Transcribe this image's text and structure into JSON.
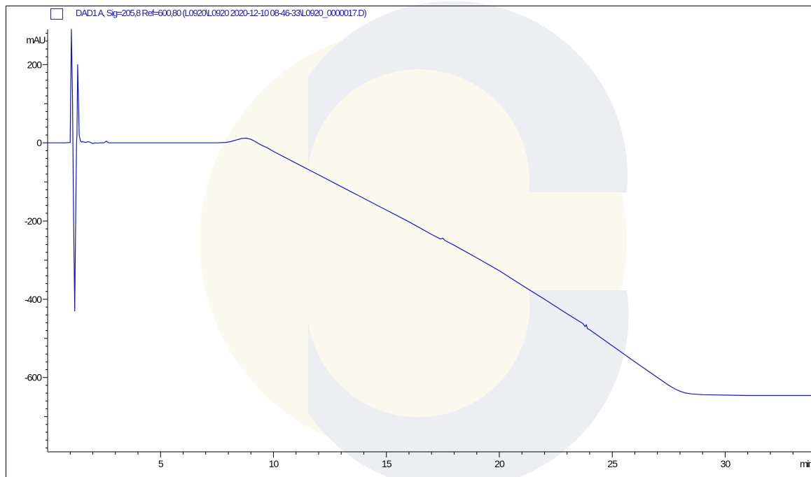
{
  "chart_data": {
    "type": "line",
    "title": "",
    "legend": "DAD1 A, Sig=205,8 Ref=600,80 (L0920\\L0920 2020-12-10 08-46-33\\L0920_0000017.D)",
    "xlabel": "min",
    "ylabel": "mAU",
    "xlim": [
      0,
      33.8
    ],
    "ylim": [
      -790,
      290
    ],
    "x_ticks": [
      5,
      10,
      15,
      20,
      25,
      30
    ],
    "x_tick_labels": [
      "5",
      "10",
      "15",
      "20",
      "25",
      "30"
    ],
    "y_ticks": [
      200,
      0,
      -200,
      -400,
      -600
    ],
    "y_tick_labels": [
      "200",
      "0",
      "-200",
      "-400",
      "-600"
    ],
    "grid": false,
    "series": [
      {
        "name": "DAD1 A",
        "color": "#1515c8",
        "x": [
          0,
          0.8,
          1.0,
          1.05,
          1.1,
          1.15,
          1.2,
          1.25,
          1.28,
          1.3,
          1.33,
          1.36,
          1.4,
          1.45,
          1.5,
          1.55,
          1.6,
          1.7,
          1.8,
          1.9,
          2.0,
          2.1,
          2.2,
          2.3,
          2.5,
          2.6,
          2.65,
          2.7,
          2.8,
          3.0,
          4.0,
          5.0,
          6.0,
          7.0,
          7.5,
          7.9,
          8.1,
          8.4,
          8.6,
          8.8,
          9.0,
          9.2,
          9.4,
          9.7,
          10.0,
          11.0,
          12.0,
          13.0,
          14.0,
          15.0,
          16.0,
          17.0,
          17.4,
          17.5,
          17.6,
          18.0,
          19.0,
          20.0,
          21.0,
          22.0,
          23.0,
          23.7,
          23.8,
          23.85,
          23.9,
          24.0,
          25.0,
          26.0,
          27.0,
          27.5,
          27.8,
          28.0,
          28.2,
          28.5,
          29.0,
          30.0,
          31.0,
          32.0,
          33.0,
          33.8
        ],
        "y": [
          0,
          0,
          1,
          290,
          120,
          -200,
          -430,
          -150,
          0,
          20,
          200,
          120,
          20,
          5,
          2,
          3,
          2,
          1,
          3,
          1,
          -2,
          0,
          -1,
          0,
          0,
          4,
          2,
          0,
          0,
          0,
          0,
          0,
          0,
          0,
          0,
          1,
          3,
          8,
          11,
          12,
          9,
          3,
          -4,
          -12,
          -22,
          -52,
          -82,
          -112,
          -142,
          -172,
          -202,
          -234,
          -246,
          -244,
          -250,
          -262,
          -294,
          -327,
          -364,
          -400,
          -437,
          -462,
          -470,
          -465,
          -475,
          -478,
          -519,
          -560,
          -600,
          -620,
          -630,
          -635,
          -639,
          -642,
          -644,
          -645,
          -646,
          -646,
          -646,
          -646
        ]
      }
    ]
  }
}
